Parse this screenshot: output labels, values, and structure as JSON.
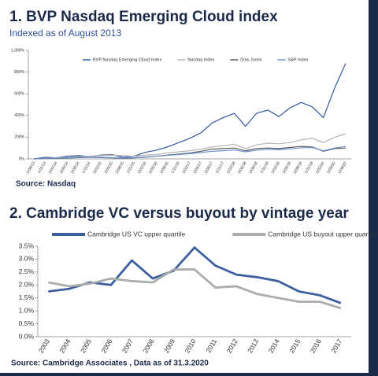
{
  "chart_data": [
    {
      "type": "line",
      "title": "1. BVP Nasdaq Emerging Cloud index",
      "subtitle": "Indexed as of August 2013",
      "source": "Source: Nasdaq",
      "categories": [
        "1/08/13",
        "1/11/13",
        "1/02/14",
        "1/05/14",
        "1/08/14",
        "1/11/14",
        "1/02/15",
        "1/05/15",
        "1/08/15",
        "1/11/15",
        "1/02/16",
        "1/05/16",
        "1/08/16",
        "1/11/16",
        "1/02/17",
        "1/05/17",
        "1/08/17",
        "1/11/17",
        "1/02/18",
        "1/05/18",
        "1/08/18",
        "1/11/18",
        "1/02/19",
        "1/05/19",
        "1/08/19",
        "1/11/19",
        "1/02/20",
        "1/05/20",
        "1/08/20"
      ],
      "series": [
        {
          "name": "BVP Nasdaq Emerging Cloud Index",
          "color": "#34559f",
          "values": [
            0,
            15,
            10,
            25,
            30,
            20,
            35,
            40,
            15,
            25,
            60,
            80,
            110,
            150,
            190,
            240,
            330,
            380,
            420,
            300,
            420,
            450,
            390,
            470,
            520,
            480,
            380,
            650,
            880
          ]
        },
        {
          "name": "Nasdaq Index",
          "color": "#b4b4b4",
          "values": [
            0,
            5,
            10,
            15,
            20,
            25,
            30,
            35,
            30,
            25,
            35,
            40,
            55,
            65,
            75,
            90,
            110,
            120,
            135,
            95,
            130,
            145,
            140,
            150,
            175,
            190,
            150,
            200,
            230
          ]
        },
        {
          "name": "Dow Jones",
          "color": "#5a5a5a",
          "values": [
            0,
            3,
            5,
            8,
            12,
            15,
            12,
            10,
            5,
            10,
            15,
            25,
            35,
            45,
            55,
            70,
            90,
            95,
            100,
            75,
            95,
            100,
            95,
            105,
            115,
            110,
            70,
            95,
            100
          ]
        },
        {
          "name": "S&P Index",
          "color": "#6f93d2",
          "values": [
            0,
            4,
            7,
            10,
            15,
            18,
            15,
            12,
            8,
            12,
            18,
            25,
            32,
            40,
            48,
            58,
            70,
            75,
            82,
            65,
            80,
            88,
            85,
            92,
            102,
            105,
            75,
            100,
            115
          ]
        }
      ],
      "ylim": [
        0,
        1000
      ],
      "yticks": [
        {
          "value": 0,
          "label": "0%"
        },
        {
          "value": 200,
          "label": "200%"
        },
        {
          "value": 400,
          "label": "400%"
        },
        {
          "value": 600,
          "label": "600%"
        },
        {
          "value": 800,
          "label": "800%"
        },
        {
          "value": 1000,
          "label": "1,000%"
        }
      ],
      "legend": "top"
    },
    {
      "type": "line",
      "title": "2. Cambridge VC versus buyout by vintage year",
      "source": "Source: Cambridge Associates , Data as of 31.3.2020",
      "categories": [
        "2003",
        "2004",
        "2005",
        "2006",
        "2007",
        "2008",
        "2009",
        "2010",
        "2011",
        "2012",
        "2013",
        "2014",
        "2015",
        "2016",
        "2017"
      ],
      "series": [
        {
          "name": "Cambridge US VC upper quartile",
          "color": "#3d5f9f",
          "values": [
            1.75,
            1.85,
            2.1,
            2.0,
            2.95,
            2.25,
            2.55,
            3.45,
            2.75,
            2.4,
            2.3,
            2.15,
            1.75,
            1.6,
            1.3
          ]
        },
        {
          "name": "Cambridge US buyout upper quartile",
          "color": "#a9adab",
          "values": [
            2.1,
            1.95,
            2.05,
            2.25,
            2.15,
            2.1,
            2.6,
            2.6,
            1.9,
            1.95,
            1.65,
            1.5,
            1.35,
            1.35,
            1.1
          ]
        }
      ],
      "ylim": [
        0,
        3.5
      ],
      "yticks": [
        {
          "value": 0,
          "label": "0.0%"
        },
        {
          "value": 0.5,
          "label": "0.5%"
        },
        {
          "value": 1,
          "label": "1.0%"
        },
        {
          "value": 1.5,
          "label": "1.5%"
        },
        {
          "value": 2,
          "label": "2.0%"
        },
        {
          "value": 2.5,
          "label": "2.5%"
        },
        {
          "value": 3,
          "label": "3.0%"
        },
        {
          "value": 3.5,
          "label": "3.5%"
        }
      ],
      "legend": "top"
    }
  ]
}
